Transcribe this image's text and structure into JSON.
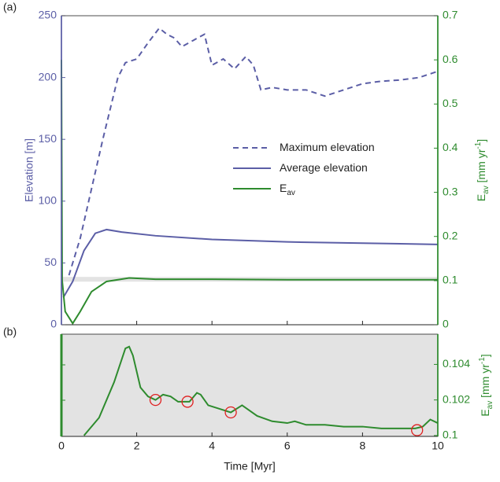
{
  "chart_data": [
    {
      "type": "line",
      "panel_label": "(a)",
      "ylabel": "Elevation [m]",
      "y2label": [
        "E",
        "av",
        " [mm yr",
        "-1",
        "]"
      ],
      "ylim": [
        0,
        250
      ],
      "yticks": [
        0,
        50,
        100,
        150,
        200,
        250
      ],
      "y2lim": [
        0,
        0.7
      ],
      "y2ticks": [
        0,
        0.1,
        0.2,
        0.3,
        0.4,
        0.5,
        0.6,
        0.7
      ],
      "xlim": [
        0,
        10
      ],
      "series": [
        {
          "name": "Maximum elevation",
          "color": "#5b5ea6",
          "dash": true,
          "x": [
            0.2,
            0.5,
            0.8,
            1.1,
            1.5,
            1.7,
            2.0,
            2.3,
            2.6,
            2.8,
            3.0,
            3.2,
            3.5,
            3.8,
            4.0,
            4.3,
            4.6,
            4.9,
            5.1,
            5.3,
            5.6,
            6.0,
            6.5,
            7.0,
            7.5,
            8.0,
            8.5,
            9.0,
            9.5,
            10
          ],
          "values": [
            40,
            70,
            110,
            150,
            200,
            212,
            215,
            228,
            240,
            235,
            232,
            225,
            230,
            235,
            210,
            215,
            207,
            217,
            210,
            190,
            192,
            190,
            190,
            185,
            190,
            195,
            197,
            198,
            200,
            205
          ]
        },
        {
          "name": "Average elevation",
          "color": "#5b5ea6",
          "dash": false,
          "x": [
            0.05,
            0.3,
            0.6,
            0.9,
            1.2,
            1.6,
            2.5,
            4,
            6,
            8,
            10
          ],
          "values": [
            22,
            35,
            60,
            74,
            77,
            75,
            72,
            69,
            67,
            66,
            65
          ]
        },
        {
          "name": "E",
          "name_sub": "av",
          "color": "#2e8b2e",
          "dash": false,
          "axis": "y2",
          "x": [
            0,
            0.02,
            0.1,
            0.3,
            0.5,
            0.8,
            1.2,
            1.8,
            2.5,
            4,
            6,
            8,
            10
          ],
          "values": [
            0.6,
            0.1,
            0.03,
            0.003,
            0.03,
            0.075,
            0.098,
            0.106,
            0.103,
            0.103,
            0.102,
            0.102,
            0.102
          ]
        }
      ]
    },
    {
      "type": "line",
      "panel_label": "(b)",
      "xlabel": "Time [Myr]",
      "y2label": [
        "E",
        "av",
        " [mm yr",
        "-1",
        "]"
      ],
      "xlim": [
        0,
        10
      ],
      "xticks": [
        0,
        2,
        4,
        6,
        8,
        10
      ],
      "y2lim": [
        0.09995,
        0.1057
      ],
      "y2ticks": [
        0.1,
        0.102,
        0.104
      ],
      "series": [
        {
          "color": "#2e8b2e",
          "axis": "y2",
          "x": [
            0.6,
            1.0,
            1.4,
            1.7,
            1.8,
            1.9,
            2.1,
            2.3,
            2.5,
            2.7,
            2.9,
            3.1,
            3.4,
            3.6,
            3.7,
            3.9,
            4.2,
            4.5,
            4.8,
            5.2,
            5.6,
            6.0,
            6.2,
            6.5,
            7,
            7.5,
            8,
            8.5,
            9,
            9.4,
            9.6,
            9.8,
            10
          ],
          "values": [
            0.1,
            0.101,
            0.103,
            0.1049,
            0.105,
            0.1045,
            0.1027,
            0.1022,
            0.102,
            0.1023,
            0.1022,
            0.1019,
            0.1019,
            0.1024,
            0.1023,
            0.1017,
            0.1015,
            0.1013,
            0.1017,
            0.1011,
            0.1008,
            0.1007,
            0.1008,
            0.1006,
            0.1006,
            0.1005,
            0.1005,
            0.1004,
            0.1004,
            0.1004,
            0.1005,
            0.1009,
            0.1007
          ]
        }
      ],
      "markers": {
        "color": "#e02020",
        "x": [
          2.5,
          3.35,
          4.5,
          9.45
        ],
        "values": [
          0.102,
          0.1019,
          0.1013,
          0.1003
        ]
      }
    }
  ]
}
